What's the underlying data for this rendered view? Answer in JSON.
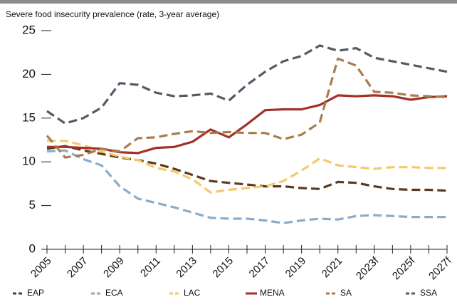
{
  "chart_data": {
    "type": "line",
    "title": "Severe food insecurity prevalence (rate, 3-year average)",
    "categories": [
      "2005",
      null,
      "2007",
      null,
      "2009",
      null,
      "2011",
      null,
      "2013",
      null,
      "2015",
      null,
      "2017",
      null,
      "2019",
      null,
      "2021",
      null,
      "2023f",
      null,
      "2025f",
      null,
      "2027f"
    ],
    "ylim": [
      0,
      25
    ],
    "yticks": [
      0,
      5,
      10,
      15,
      20,
      25
    ],
    "series": [
      {
        "name": "EAP",
        "color": "#5b3b1c",
        "dash": true,
        "values": [
          11.5,
          11.8,
          11.3,
          10.9,
          10.5,
          10.2,
          9.8,
          9.2,
          8.5,
          7.8,
          7.6,
          7.4,
          7.2,
          7.2,
          7.0,
          6.9,
          7.7,
          7.6,
          7.2,
          6.9,
          6.8,
          6.8,
          6.7
        ]
      },
      {
        "name": "ECA",
        "color": "#8aaccb",
        "dash": true,
        "values": [
          11.2,
          11.3,
          10.3,
          9.6,
          7.2,
          5.8,
          5.3,
          4.8,
          4.2,
          3.6,
          3.5,
          3.5,
          3.3,
          3.0,
          3.3,
          3.5,
          3.4,
          3.8,
          3.9,
          3.8,
          3.7,
          3.7,
          3.7
        ]
      },
      {
        "name": "LAC",
        "color": "#f7c86c",
        "dash": true,
        "values": [
          12.4,
          12.4,
          11.9,
          11.2,
          10.6,
          10.2,
          9.3,
          8.9,
          8.0,
          6.5,
          6.8,
          7.0,
          7.2,
          7.8,
          9.0,
          10.4,
          9.6,
          9.4,
          9.2,
          9.4,
          9.4,
          9.3,
          9.3
        ]
      },
      {
        "name": "MENA",
        "color": "#a2312a",
        "dash": false,
        "values": [
          11.7,
          11.7,
          11.6,
          11.5,
          11.1,
          11.0,
          11.6,
          11.7,
          12.3,
          13.7,
          12.8,
          14.3,
          15.9,
          16.0,
          16.0,
          16.5,
          17.6,
          17.5,
          17.6,
          17.5,
          17.1,
          17.4,
          17.5
        ]
      },
      {
        "name": "SA",
        "color": "#a87c4e",
        "dash": true,
        "values": [
          13.0,
          10.5,
          10.8,
          11.5,
          11.2,
          12.7,
          12.8,
          13.2,
          13.5,
          13.3,
          13.4,
          13.3,
          13.3,
          12.6,
          13.1,
          14.5,
          21.8,
          21.0,
          18.0,
          17.9,
          17.6,
          17.5,
          17.4
        ]
      },
      {
        "name": "SSA",
        "color": "#555a66",
        "dash": true,
        "values": [
          15.8,
          14.4,
          15.0,
          16.2,
          19.0,
          18.8,
          17.9,
          17.5,
          17.6,
          17.8,
          17.0,
          18.8,
          20.3,
          21.5,
          22.1,
          23.3,
          22.7,
          23.0,
          21.9,
          21.5,
          21.1,
          20.7,
          20.3
        ]
      }
    ]
  }
}
